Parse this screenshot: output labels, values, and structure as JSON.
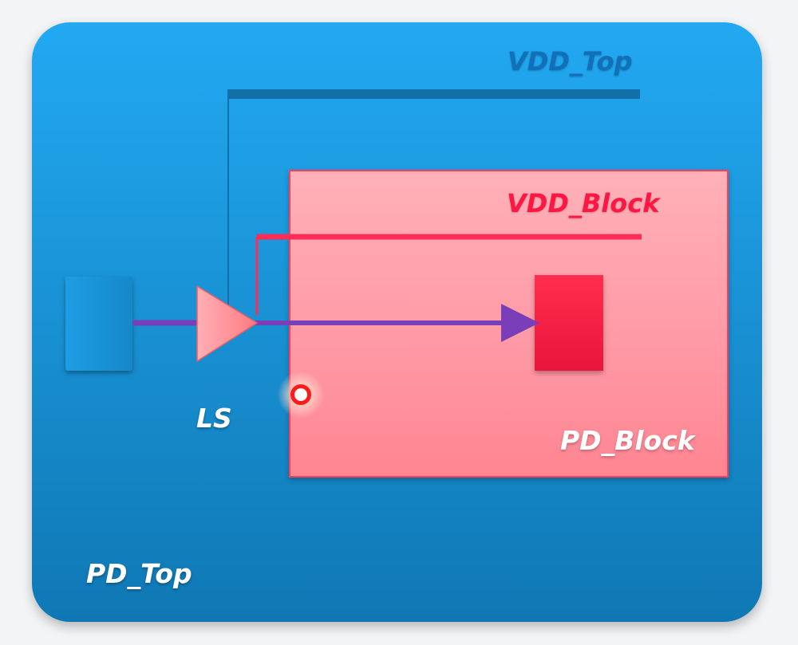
{
  "diagram": {
    "labels": {
      "vdd_top": "VDD_Top",
      "vdd_block": "VDD_Block",
      "level_shifter": "LS",
      "pd_block": "PD_Block",
      "pd_top": "PD_Top"
    },
    "colors": {
      "pd_top_fill": "#1a93d6",
      "pd_block_fill": "#ff9aa6",
      "vdd_top_rail": "#126fa8",
      "vdd_block_rail": "#ff2d55",
      "signal_wire": "#7a3fb8",
      "level_shifter": "#ff8f94",
      "cursor_marker": "#ff1a1a"
    },
    "icons": {
      "cursor": "pointer-highlight-icon"
    }
  }
}
